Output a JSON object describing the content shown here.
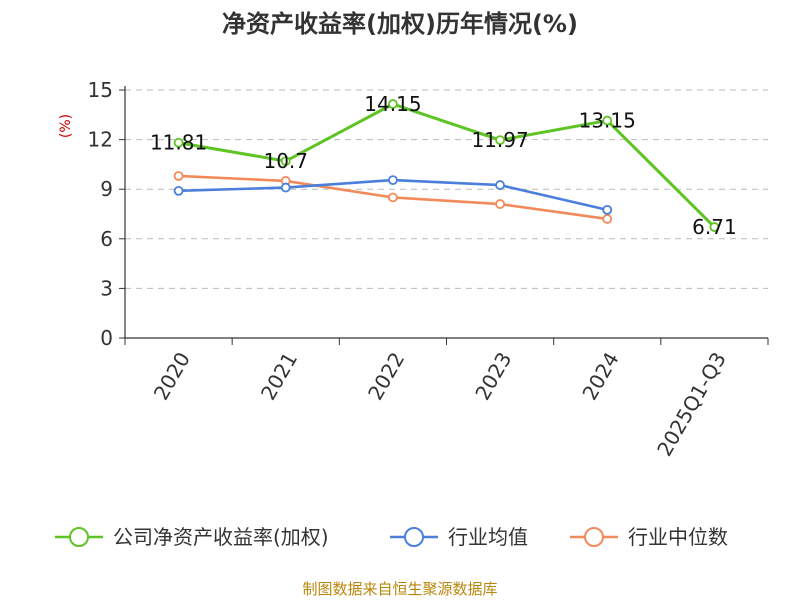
{
  "chart_data": {
    "type": "line",
    "title": "净资产收益率(加权)历年情况(%)",
    "ylabel": "(%)",
    "xlabel": "",
    "categories": [
      "2020",
      "2021",
      "2022",
      "2023",
      "2024",
      "2025Q1-Q3"
    ],
    "ylim": [
      0,
      15
    ],
    "yticks": [
      0,
      3,
      6,
      9,
      12,
      15
    ],
    "grid": true,
    "legend_position": "bottom",
    "series": [
      {
        "name": "公司净资产收益率(加权)",
        "color": "#5ec423",
        "values": [
          11.81,
          10.7,
          14.15,
          11.97,
          13.15,
          6.71
        ],
        "labels": [
          "11.81",
          "10.7",
          "14.15",
          "11.97",
          "13.15",
          "6.71"
        ]
      },
      {
        "name": "行业均值",
        "color": "#4a7fdc",
        "values": [
          8.9,
          9.1,
          9.55,
          9.25,
          7.75,
          null
        ]
      },
      {
        "name": "行业中位数",
        "color": "#f28a5b",
        "values": [
          9.8,
          9.5,
          8.5,
          8.1,
          7.2,
          null
        ]
      }
    ],
    "source": "制图数据来自恒生聚源数据库"
  }
}
